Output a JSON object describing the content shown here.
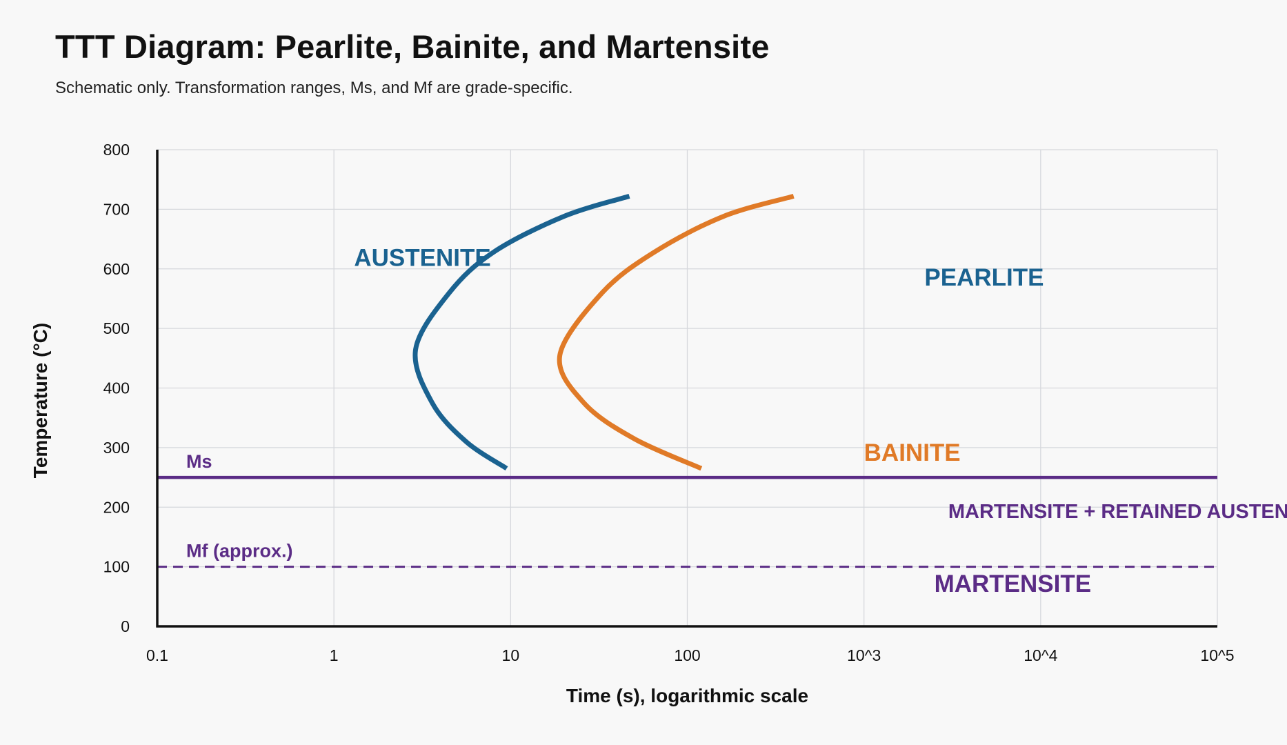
{
  "title": "TTT Diagram: Pearlite, Bainite, and Martensite",
  "subtitle": "Schematic only. Transformation ranges, Ms, and Mf are grade-specific.",
  "colors": {
    "blue": "#1a6290",
    "orange": "#e07a27",
    "purple": "#5b2c86",
    "axis": "#111111",
    "grid": "#d6d8dc"
  },
  "chart_data": {
    "type": "line",
    "xlabel": "Time (s), logarithmic scale",
    "ylabel": "Temperature (°C)",
    "x_scale": "log",
    "xlim": [
      0.1,
      100000
    ],
    "ylim": [
      0,
      800
    ],
    "x_ticks": [
      {
        "value": 0.1,
        "label": "0.1"
      },
      {
        "value": 1,
        "label": "1"
      },
      {
        "value": 10,
        "label": "10"
      },
      {
        "value": 100,
        "label": "100"
      },
      {
        "value": 1000,
        "label": "10^3"
      },
      {
        "value": 10000,
        "label": "10^4"
      },
      {
        "value": 100000,
        "label": "10^5"
      }
    ],
    "y_ticks": [
      0,
      100,
      200,
      300,
      400,
      500,
      600,
      700,
      800
    ],
    "grid": true,
    "series": [
      {
        "color": "#1a6290",
        "points": [
          [
            47,
            722
          ],
          [
            20,
            688
          ],
          [
            8,
            628
          ],
          [
            4.5,
            560
          ],
          [
            2.9,
            465
          ],
          [
            3.6,
            375
          ],
          [
            5.6,
            310
          ],
          [
            9.5,
            265
          ]
        ]
      },
      {
        "color": "#e07a27",
        "points": [
          [
            400,
            722
          ],
          [
            160,
            688
          ],
          [
            65,
            628
          ],
          [
            33,
            560
          ],
          [
            19,
            455
          ],
          [
            26,
            375
          ],
          [
            50,
            315
          ],
          [
            120,
            265
          ]
        ]
      }
    ],
    "reference_lines": [
      {
        "label": "Ms",
        "y": 250,
        "style": "solid",
        "color": "#5b2c86"
      },
      {
        "label": "Mf (approx.)",
        "y": 100,
        "style": "dashed",
        "color": "#5b2c86"
      }
    ],
    "region_labels": [
      {
        "text": "AUSTENITE",
        "x": 1.3,
        "y": 605,
        "color": "#1a6290",
        "size": "large"
      },
      {
        "text": "PEARLITE",
        "x": 2200,
        "y": 572,
        "color": "#1a6290",
        "size": "large"
      },
      {
        "text": "BAINITE",
        "x": 1000,
        "y": 278,
        "color": "#e07a27",
        "size": "large"
      },
      {
        "text": "MARTENSITE + RETAINED AUSTENITE",
        "x": 3000,
        "y": 182,
        "color": "#5b2c86",
        "size": "medium"
      },
      {
        "text": "MARTENSITE",
        "x": 2500,
        "y": 58,
        "color": "#5b2c86",
        "size": "large"
      }
    ]
  }
}
